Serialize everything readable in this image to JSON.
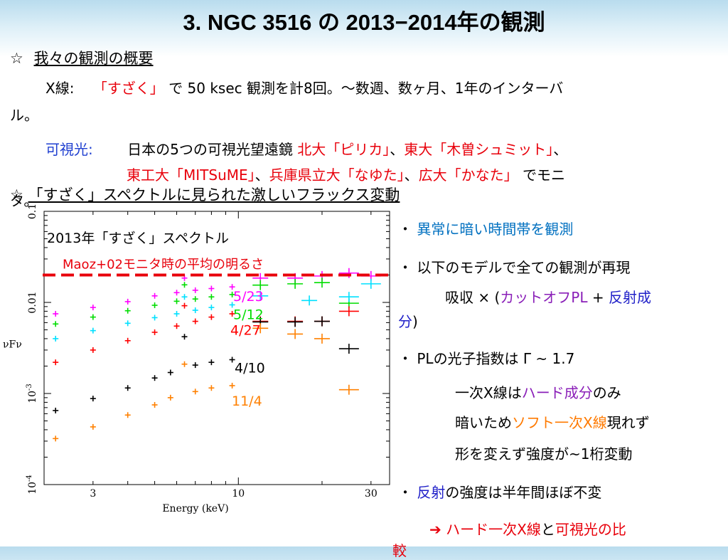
{
  "slide": {
    "title": "3. NGC 3516 の 2013−2014年の観測",
    "section1": {
      "star": "☆",
      "heading": "我々の観測の概要"
    },
    "xray": {
      "label": "X線:",
      "name": "「すざく」",
      "rest1": "で 50 ksec 観測を計8回。～数週、数ヶ月、1年のインターバ",
      "rest2": "ル。"
    },
    "optical": {
      "label": "可視光:",
      "text": "日本の5つの可視光望遠鏡",
      "t1": "北大「ピリカ」",
      "sep1": "、",
      "t2": "東大「木曽シュミット」",
      "sep2": "、",
      "t3": "東工大「MITSuME」",
      "sep3": "、",
      "t4": "兵庫県立大「なゆた」",
      "sep4": "、",
      "t5": "広大「かなた」",
      "end": "でモニ",
      "end2": "タ。"
    },
    "section2": {
      "star": "☆",
      "heading": "「すざく」スペクトルに見られた激しいフラックス変動"
    }
  },
  "bullets": {
    "b1": {
      "mark": "・",
      "text": "異常に暗い時間帯を観測"
    },
    "b2": {
      "mark": "・",
      "text": "以下のモデルで全ての観測が再現"
    },
    "b2a": {
      "pre": "吸収 × (",
      "cut": "カットオフPL",
      "plus": " + ",
      "refl": "反射成",
      "refl2": "分",
      "post": ")"
    },
    "b3": {
      "mark": "・",
      "text": "PLの光子指数は Γ ~ 1.7"
    },
    "b3a": {
      "pre": "一次X線は",
      "hard": "ハード成分",
      "post": "のみ"
    },
    "b3b": {
      "pre": "暗いため",
      "soft": "ソフト一次X線",
      "post": "現れず"
    },
    "b3c": {
      "text": "形を変えず強度が~1桁変動"
    },
    "b4": {
      "mark": "・",
      "refl": "反射",
      "post": "の強度は半年間ほぼ不変"
    },
    "b5": {
      "arrow": "➔",
      "hard": "ハード一次X線",
      "and": "と",
      "opt": "可視光",
      "post": "の比",
      "post2": "較"
    }
  },
  "chart_data": {
    "type": "scatter",
    "title": "2013年「すざく」スペクトル",
    "xlabel": "Energy (keV)",
    "ylabel": "νFν",
    "xscale": "log",
    "yscale": "log",
    "xlim": [
      2,
      35
    ],
    "ylim": [
      0.0001,
      0.1
    ],
    "xticks": [
      "3",
      "10",
      "30"
    ],
    "yticks": [
      "10^-4",
      "10^-3",
      "0.01",
      "0.1"
    ],
    "annotation": "Maoz+02モニタ時の平均の明るさ",
    "reference_level": 0.02,
    "colors": {
      "5/23": "#ff00ff",
      "5/12": "#00dd00",
      "4/27": "#ff0000",
      "cyan": "#00e0ff",
      "4/10": "#000000",
      "11/4": "#ff8000",
      "ref": "#e8000b"
    },
    "series": [
      {
        "name": "5/23",
        "points": [
          [
            2.2,
            0.0075
          ],
          [
            3,
            0.0088
          ],
          [
            4,
            0.0102
          ],
          [
            5,
            0.0118
          ],
          [
            6,
            0.0128
          ],
          [
            6.4,
            0.0185
          ],
          [
            7,
            0.0136
          ],
          [
            8,
            0.0142
          ],
          [
            9.5,
            0.0148
          ],
          [
            12,
            0.0185
          ],
          [
            16,
            0.0185
          ],
          [
            20,
            0.0195
          ],
          [
            25,
            0.021
          ],
          [
            30,
            0.0195
          ]
        ]
      },
      {
        "name": "5/12",
        "points": [
          [
            2.2,
            0.0058
          ],
          [
            3,
            0.0069
          ],
          [
            4,
            0.0081
          ],
          [
            5,
            0.0093
          ],
          [
            6,
            0.0103
          ],
          [
            6.4,
            0.0156
          ],
          [
            7,
            0.0109
          ],
          [
            8,
            0.0115
          ],
          [
            9.5,
            0.0122
          ],
          [
            12,
            0.0155
          ],
          [
            16,
            0.016
          ],
          [
            20,
            0.0165
          ],
          [
            25,
            0.0098
          ]
        ]
      },
      {
        "name": "",
        "points": [
          [
            2.2,
            0.004
          ],
          [
            3,
            0.0049
          ],
          [
            4,
            0.0059
          ],
          [
            5,
            0.0068
          ],
          [
            6,
            0.0075
          ],
          [
            6.4,
            0.0115
          ],
          [
            7,
            0.0082
          ],
          [
            8,
            0.0088
          ],
          [
            9.5,
            0.0094
          ],
          [
            12,
            0.0118
          ],
          [
            18,
            0.0105
          ],
          [
            25,
            0.0115
          ],
          [
            30,
            0.016
          ]
        ]
      },
      {
        "name": "4/27",
        "points": [
          [
            2.2,
            0.0022
          ],
          [
            3,
            0.003
          ],
          [
            4,
            0.0038
          ],
          [
            5,
            0.0047
          ],
          [
            6,
            0.0055
          ],
          [
            6.4,
            0.0092
          ],
          [
            7,
            0.0062
          ],
          [
            8,
            0.0069
          ],
          [
            9.5,
            0.0075
          ],
          [
            12,
            0.0062
          ],
          [
            16,
            0.0062
          ],
          [
            20,
            0.0062
          ],
          [
            25,
            0.008
          ]
        ]
      },
      {
        "name": "4/10",
        "points": [
          [
            2.2,
            0.00065
          ],
          [
            3,
            0.00088
          ],
          [
            4,
            0.00115
          ],
          [
            5,
            0.00148
          ],
          [
            5.7,
            0.0017
          ],
          [
            6.4,
            0.0042
          ],
          [
            7,
            0.00205
          ],
          [
            8,
            0.0022
          ],
          [
            9.5,
            0.00235
          ],
          [
            12,
            0.0061
          ],
          [
            16,
            0.0061
          ],
          [
            20,
            0.0062
          ],
          [
            25,
            0.0031
          ]
        ]
      },
      {
        "name": "11/4",
        "points": [
          [
            2.2,
            0.00032
          ],
          [
            3,
            0.00043
          ],
          [
            4,
            0.00058
          ],
          [
            5,
            0.00075
          ],
          [
            5.7,
            0.0009
          ],
          [
            6.4,
            0.0021
          ],
          [
            7,
            0.00105
          ],
          [
            8,
            0.00115
          ],
          [
            9.5,
            0.00122
          ],
          [
            12,
            0.0052
          ],
          [
            16,
            0.0045
          ],
          [
            20,
            0.004
          ],
          [
            25,
            0.0011
          ]
        ]
      }
    ]
  }
}
